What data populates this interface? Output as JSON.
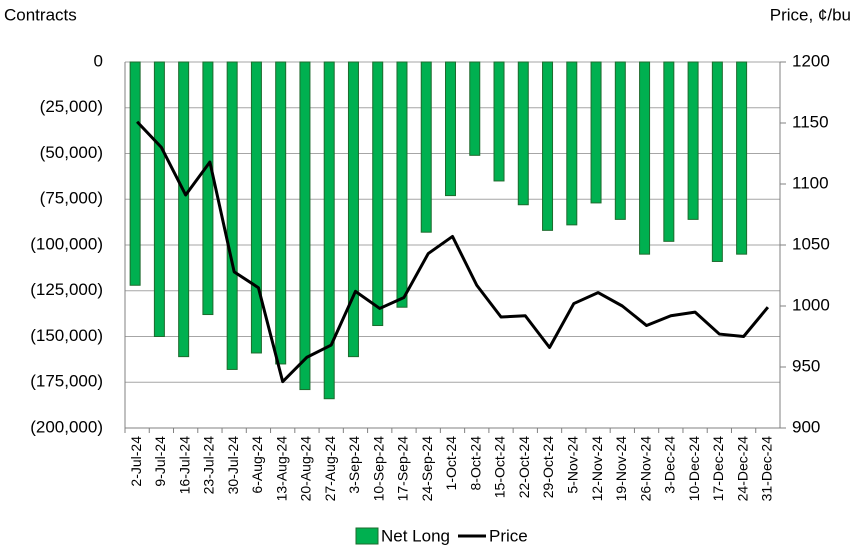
{
  "chart_data": {
    "type": "bar_line",
    "y_label": "Contracts",
    "y2_label": "Price, ¢/bu",
    "categories": [
      "2-Jul-24",
      "9-Jul-24",
      "16-Jul-24",
      "23-Jul-24",
      "30-Jul-24",
      "6-Aug-24",
      "13-Aug-24",
      "20-Aug-24",
      "27-Aug-24",
      "3-Sep-24",
      "10-Sep-24",
      "17-Sep-24",
      "24-Sep-24",
      "1-Oct-24",
      "8-Oct-24",
      "15-Oct-24",
      "22-Oct-24",
      "29-Oct-24",
      "5-Nov-24",
      "12-Nov-24",
      "19-Nov-24",
      "26-Nov-24",
      "3-Dec-24",
      "10-Dec-24",
      "17-Dec-24",
      "24-Dec-24",
      "31-Dec-24"
    ],
    "series": [
      {
        "name": "Net Long",
        "type": "bar",
        "color": "#00b050",
        "edge_color": "#1e6b2e",
        "values": [
          -122000,
          -150000,
          -161000,
          -138000,
          -168000,
          -159000,
          -165000,
          -179000,
          -184000,
          -161000,
          -144000,
          -134000,
          -93000,
          -73000,
          -51000,
          -65000,
          -78000,
          -92000,
          -89000,
          -77000,
          -86000,
          -105000,
          -98000,
          -86000,
          -109000,
          -105000,
          null
        ]
      },
      {
        "name": "Price",
        "type": "line",
        "axis": "y2",
        "color": "#000000",
        "values": [
          1151,
          1130,
          1091,
          1118,
          1028,
          1015,
          938,
          958,
          968,
          1012,
          998,
          1007,
          1043,
          1057,
          1017,
          991,
          992,
          966,
          1002,
          1011,
          1000,
          984,
          992,
          995,
          977,
          975,
          999
        ]
      }
    ],
    "ylim": [
      0,
      -200000
    ],
    "yticks": [
      0,
      {
        "value": -25000,
        "label": "(25,000)"
      },
      {
        "value": -50000,
        "label": "(50,000)"
      },
      {
        "value": -75000,
        "label": "(75,000)"
      },
      {
        "value": -100000,
        "label": "(100,000)"
      },
      {
        "value": -125000,
        "label": "(125,000)"
      },
      {
        "value": -150000,
        "label": "(150,000)"
      },
      {
        "value": -175000,
        "label": "(175,000)"
      },
      {
        "value": -200000,
        "label": "(200,000)"
      }
    ],
    "negative_label_color": "#ff0000",
    "y2lim": [
      1200,
      900
    ],
    "y2ticks": [
      1200,
      1150,
      1100,
      1050,
      1000,
      950,
      900
    ],
    "grid": true,
    "legend": "bottom"
  }
}
